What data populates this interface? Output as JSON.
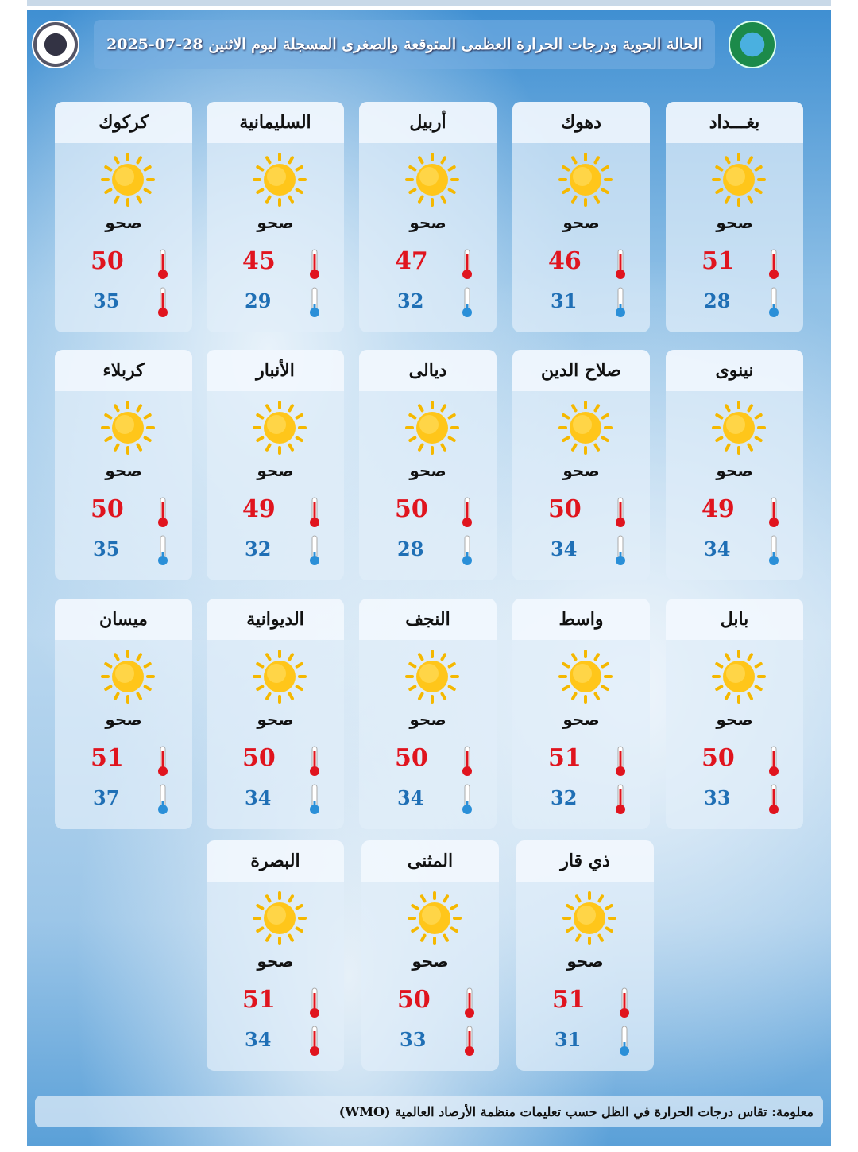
{
  "header": {
    "title": "الحالة الجوية ودرجات الحرارة العظمى المتوقعة والصغرى المسجلة ليوم الاثنين 28-07-2025"
  },
  "colors": {
    "high": "#e0141e",
    "low": "#1f6fb5"
  },
  "cities": [
    {
      "name": "بغـــداد",
      "condition": "صحو",
      "high": "51",
      "low": "28",
      "low_icon": "thermometer-cold"
    },
    {
      "name": "دهوك",
      "condition": "صحو",
      "high": "46",
      "low": "31",
      "low_icon": "thermometer-cold"
    },
    {
      "name": "أربيل",
      "condition": "صحو",
      "high": "47",
      "low": "32",
      "low_icon": "thermometer-cold"
    },
    {
      "name": "السليمانية",
      "condition": "صحو",
      "high": "45",
      "low": "29",
      "low_icon": "thermometer-cold"
    },
    {
      "name": "كركوك",
      "condition": "صحو",
      "high": "50",
      "low": "35",
      "low_icon": "thermometer-hot"
    },
    {
      "name": "نينوى",
      "condition": "صحو",
      "high": "49",
      "low": "34",
      "low_icon": "thermometer-cold"
    },
    {
      "name": "صلاح الدين",
      "condition": "صحو",
      "high": "50",
      "low": "34",
      "low_icon": "thermometer-cold"
    },
    {
      "name": "ديالى",
      "condition": "صحو",
      "high": "50",
      "low": "28",
      "low_icon": "thermometer-cold"
    },
    {
      "name": "الأنبار",
      "condition": "صحو",
      "high": "49",
      "low": "32",
      "low_icon": "thermometer-cold"
    },
    {
      "name": "كربلاء",
      "condition": "صحو",
      "high": "50",
      "low": "35",
      "low_icon": "thermometer-cold"
    },
    {
      "name": "بابل",
      "condition": "صحو",
      "high": "50",
      "low": "33",
      "low_icon": "thermometer-hot"
    },
    {
      "name": "واسط",
      "condition": "صحو",
      "high": "51",
      "low": "32",
      "low_icon": "thermometer-hot"
    },
    {
      "name": "النجف",
      "condition": "صحو",
      "high": "50",
      "low": "34",
      "low_icon": "thermometer-cold"
    },
    {
      "name": "الديوانية",
      "condition": "صحو",
      "high": "50",
      "low": "34",
      "low_icon": "thermometer-cold"
    },
    {
      "name": "ميسان",
      "condition": "صحو",
      "high": "51",
      "low": "37",
      "low_icon": "thermometer-cold"
    },
    {
      "name": "ذي قار",
      "condition": "صحو",
      "high": "51",
      "low": "31",
      "low_icon": "thermometer-cold"
    },
    {
      "name": "المثنى",
      "condition": "صحو",
      "high": "50",
      "low": "33",
      "low_icon": "thermometer-hot"
    },
    {
      "name": "البصرة",
      "condition": "صحو",
      "high": "51",
      "low": "34",
      "low_icon": "thermometer-hot"
    }
  ],
  "footer": {
    "note": "معلومة: تقاس درجات الحرارة في الظل حسب تعليمات منظمة الأرصاد العالمية (WMO)"
  }
}
